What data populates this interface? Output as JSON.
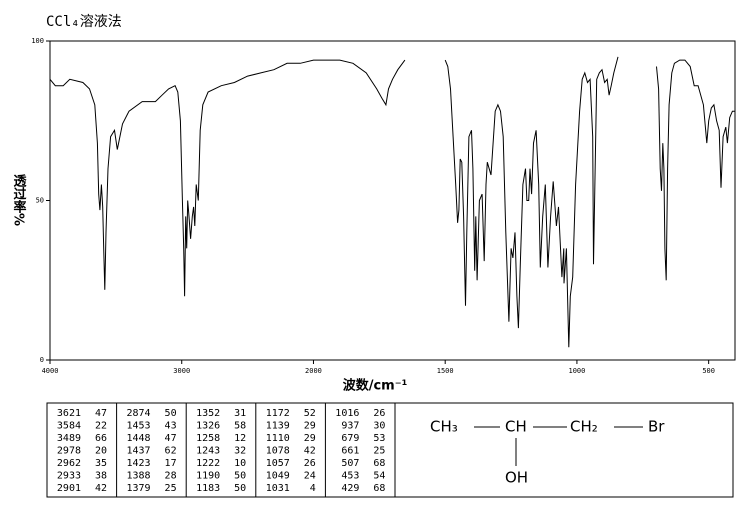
{
  "chart_data": {
    "type": "line",
    "title": "CCl₄溶液法",
    "xlabel": "波数/cm⁻¹",
    "ylabel": "透过率%",
    "color": "#000000",
    "xlim": [
      4000,
      400
    ],
    "xticks": [
      4000,
      3000,
      2000,
      1500,
      1000,
      500
    ],
    "ylim": [
      0,
      100
    ],
    "yticks": [
      0,
      50,
      100
    ],
    "x": [
      4000,
      3960,
      3900,
      3850,
      3750,
      3700,
      3660,
      3640,
      3630,
      3621,
      3610,
      3600,
      3592,
      3584,
      3575,
      3560,
      3540,
      3510,
      3489,
      3450,
      3400,
      3300,
      3200,
      3150,
      3100,
      3050,
      3030,
      3010,
      2995,
      2985,
      2978,
      2970,
      2962,
      2955,
      2945,
      2933,
      2920,
      2910,
      2901,
      2890,
      2874,
      2860,
      2840,
      2800,
      2700,
      2600,
      2500,
      2400,
      2300,
      2200,
      2100,
      2000,
      1950,
      1900,
      1850,
      1800,
      1760,
      1740,
      1725,
      1715,
      1700,
      1680,
      1653,
      1600,
      1500,
      1490,
      1480,
      1470,
      1460,
      1453,
      1448,
      1443,
      1437,
      1430,
      1423,
      1418,
      1410,
      1400,
      1395,
      1388,
      1384,
      1379,
      1370,
      1360,
      1352,
      1345,
      1340,
      1326,
      1310,
      1300,
      1290,
      1280,
      1270,
      1258,
      1250,
      1243,
      1235,
      1228,
      1222,
      1215,
      1205,
      1195,
      1190,
      1183,
      1178,
      1172,
      1165,
      1155,
      1145,
      1139,
      1130,
      1120,
      1110,
      1100,
      1090,
      1078,
      1070,
      1057,
      1050,
      1049,
      1040,
      1031,
      1025,
      1016,
      1005,
      990,
      980,
      970,
      960,
      950,
      940,
      937,
      933,
      925,
      915,
      905,
      895,
      885,
      878,
      870,
      860,
      844,
      800,
      698,
      690,
      684,
      679,
      674,
      670,
      666,
      661,
      656,
      650,
      640,
      630,
      610,
      590,
      570,
      555,
      540,
      520,
      507,
      500,
      490,
      480,
      470,
      460,
      453,
      445,
      435,
      429,
      420,
      410,
      400
    ],
    "values": [
      88,
      86,
      86,
      88,
      87,
      85,
      80,
      68,
      52,
      47,
      55,
      48,
      35,
      22,
      40,
      60,
      70,
      72,
      66,
      74,
      78,
      81,
      81,
      83,
      85,
      86,
      84,
      75,
      50,
      35,
      20,
      45,
      35,
      50,
      45,
      38,
      45,
      48,
      42,
      55,
      50,
      72,
      80,
      84,
      86,
      87,
      89,
      90,
      91,
      93,
      93,
      94,
      94,
      94,
      93,
      90,
      85,
      82,
      80,
      85,
      88,
      91,
      94,
      null,
      94,
      92,
      85,
      70,
      55,
      43,
      47,
      63,
      62,
      45,
      17,
      40,
      70,
      72,
      60,
      28,
      45,
      25,
      50,
      52,
      31,
      55,
      62,
      58,
      78,
      80,
      78,
      70,
      40,
      12,
      35,
      32,
      40,
      20,
      10,
      30,
      55,
      60,
      50,
      50,
      60,
      52,
      68,
      72,
      55,
      29,
      45,
      55,
      29,
      45,
      56,
      42,
      48,
      26,
      35,
      24,
      35,
      4,
      20,
      26,
      55,
      78,
      88,
      90,
      87,
      88,
      70,
      30,
      50,
      88,
      90,
      91,
      87,
      88,
      83,
      86,
      90,
      95,
      null,
      92,
      85,
      60,
      53,
      68,
      60,
      35,
      25,
      60,
      80,
      90,
      93,
      94,
      94,
      92,
      86,
      86,
      80,
      68,
      75,
      79,
      80,
      75,
      72,
      54,
      70,
      73,
      68,
      76,
      78,
      78
    ]
  },
  "peak_table": {
    "columns": [
      [
        [
          3621,
          47
        ],
        [
          3584,
          22
        ],
        [
          3489,
          66
        ],
        [
          2978,
          20
        ],
        [
          2962,
          35
        ],
        [
          2933,
          38
        ],
        [
          2901,
          42
        ]
      ],
      [
        [
          2874,
          50
        ],
        [
          1453,
          43
        ],
        [
          1448,
          47
        ],
        [
          1437,
          62
        ],
        [
          1423,
          17
        ],
        [
          1388,
          28
        ],
        [
          1379,
          25
        ]
      ],
      [
        [
          1352,
          31
        ],
        [
          1326,
          58
        ],
        [
          1258,
          12
        ],
        [
          1243,
          32
        ],
        [
          1222,
          10
        ],
        [
          1190,
          50
        ],
        [
          1183,
          50
        ]
      ],
      [
        [
          1172,
          52
        ],
        [
          1139,
          29
        ],
        [
          1110,
          29
        ],
        [
          1078,
          42
        ],
        [
          1057,
          26
        ],
        [
          1049,
          24
        ],
        [
          1031,
          4
        ]
      ],
      [
        [
          1016,
          26
        ],
        [
          937,
          30
        ],
        [
          679,
          53
        ],
        [
          661,
          25
        ],
        [
          507,
          68
        ],
        [
          453,
          54
        ],
        [
          429,
          68
        ]
      ]
    ]
  },
  "structure": {
    "chain": [
      "CH₃",
      "CH",
      "CH₂",
      "Br"
    ],
    "substituent": "OH"
  }
}
